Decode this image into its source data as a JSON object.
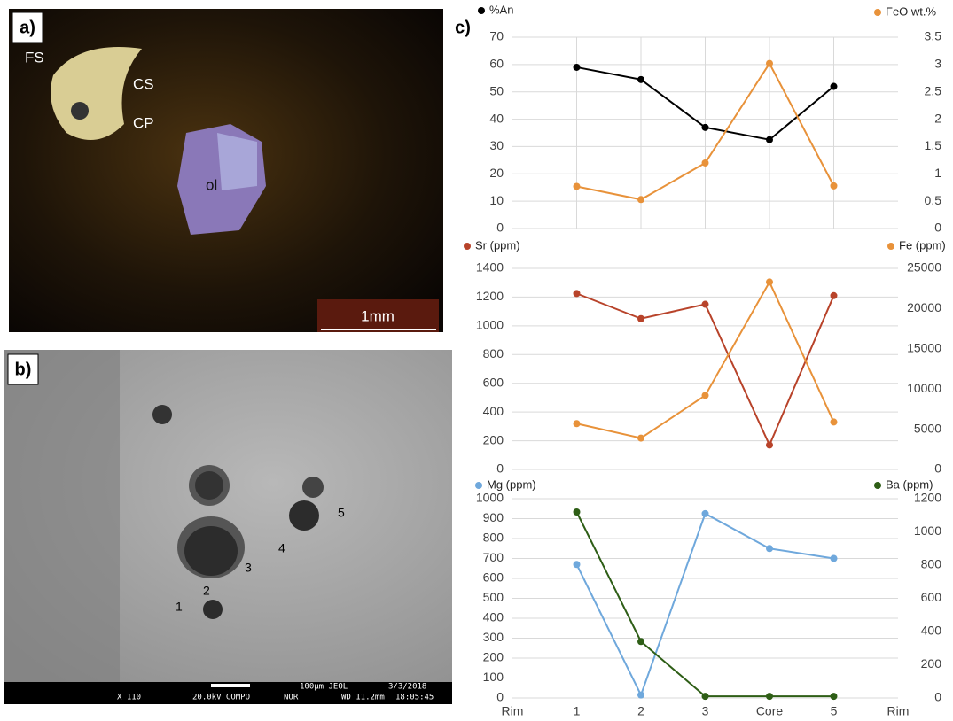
{
  "panels": {
    "a": "a)",
    "b": "b)",
    "c": "c)"
  },
  "images": {
    "a": {
      "labels": [
        "FS",
        "CS",
        "CP",
        "ol"
      ],
      "scale": "1mm"
    },
    "b": {
      "labels": [
        "1",
        "2",
        "3",
        "4",
        "5"
      ],
      "footer": [
        "X 110",
        "20.0kV COMPO",
        "NOR",
        "100µm JEOL",
        "WD 11.2mm",
        "3/3/2018",
        "18:05:45"
      ]
    }
  },
  "chart_data": [
    {
      "type": "line",
      "ylim": [
        0,
        70
      ],
      "yticks": [
        0,
        10,
        20,
        30,
        40,
        50,
        60,
        70
      ],
      "y2lim": [
        0,
        3.5
      ],
      "y2ticks": [
        0,
        0.5,
        1,
        1.5,
        2,
        2.5,
        3,
        3.5
      ],
      "grid": true,
      "xgrid": true,
      "series": [
        {
          "name": "%An",
          "color": "#000000",
          "values": [
            null,
            59,
            54.5,
            37,
            32.5,
            52,
            null
          ]
        },
        {
          "name": "FeO wt.%",
          "color": "#e8923a",
          "axis": "y2",
          "values": [
            null,
            0.77,
            0.53,
            1.2,
            3.02,
            0.78,
            null
          ]
        }
      ]
    },
    {
      "type": "line",
      "ylim": [
        0,
        1400
      ],
      "yticks": [
        0,
        200,
        400,
        600,
        800,
        1000,
        1200,
        1400
      ],
      "y2lim": [
        0,
        25000
      ],
      "y2ticks": [
        0,
        5000,
        10000,
        15000,
        20000,
        25000
      ],
      "grid": true,
      "xgrid": false,
      "series": [
        {
          "name": "Sr (ppm)",
          "color": "#b8432a",
          "values": [
            null,
            1225,
            1050,
            1150,
            170,
            1210,
            null
          ]
        },
        {
          "name": "Fe (ppm)",
          "color": "#e8923a",
          "axis": "y2",
          "values": [
            null,
            5700,
            3900,
            9200,
            23300,
            5900,
            null
          ]
        }
      ]
    },
    {
      "type": "line",
      "categories": [
        "Rim",
        "1",
        "2",
        "3",
        "Core",
        "5",
        "Rim"
      ],
      "ylim": [
        0,
        1000
      ],
      "yticks": [
        0,
        100,
        200,
        300,
        400,
        500,
        600,
        700,
        800,
        900,
        1000
      ],
      "y2lim": [
        0,
        1200
      ],
      "y2ticks": [
        0,
        200,
        400,
        600,
        800,
        1000,
        1200
      ],
      "grid": true,
      "xgrid": false,
      "series": [
        {
          "name": "Mg (ppm)",
          "color": "#6fa8dc",
          "values": [
            null,
            670,
            15,
            925,
            750,
            700,
            null
          ]
        },
        {
          "name": "Ba (ppm)",
          "color": "#2e5e16",
          "axis": "y2",
          "values": [
            null,
            1120,
            340,
            10,
            10,
            10,
            null
          ]
        }
      ]
    }
  ]
}
